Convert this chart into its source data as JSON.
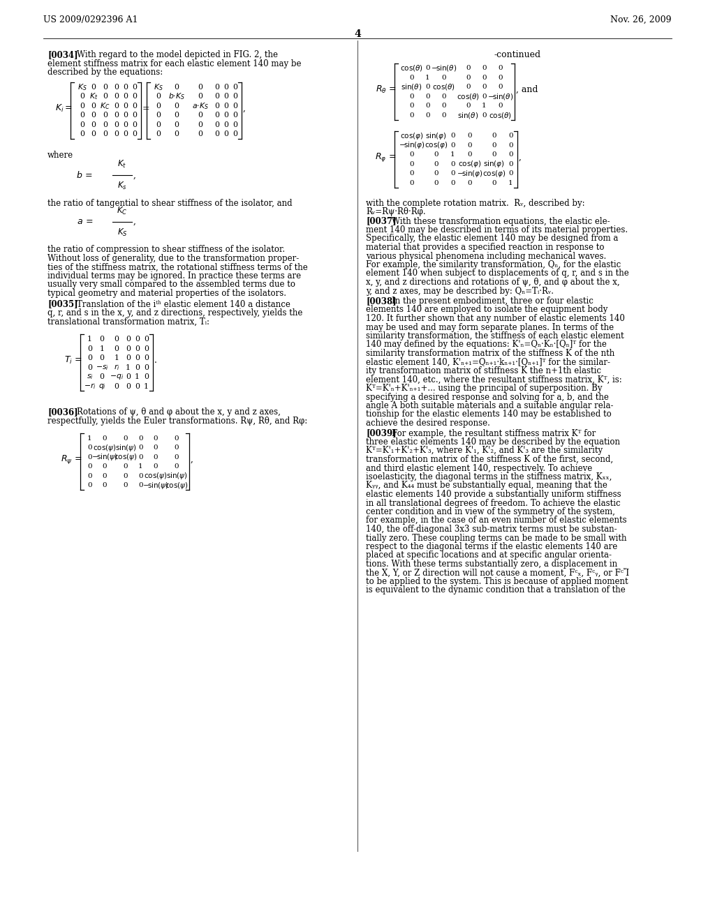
{
  "bg_color": "#ffffff",
  "header_left": "US 2009/0292396 A1",
  "header_right": "Nov. 26, 2009",
  "page_number": "4"
}
